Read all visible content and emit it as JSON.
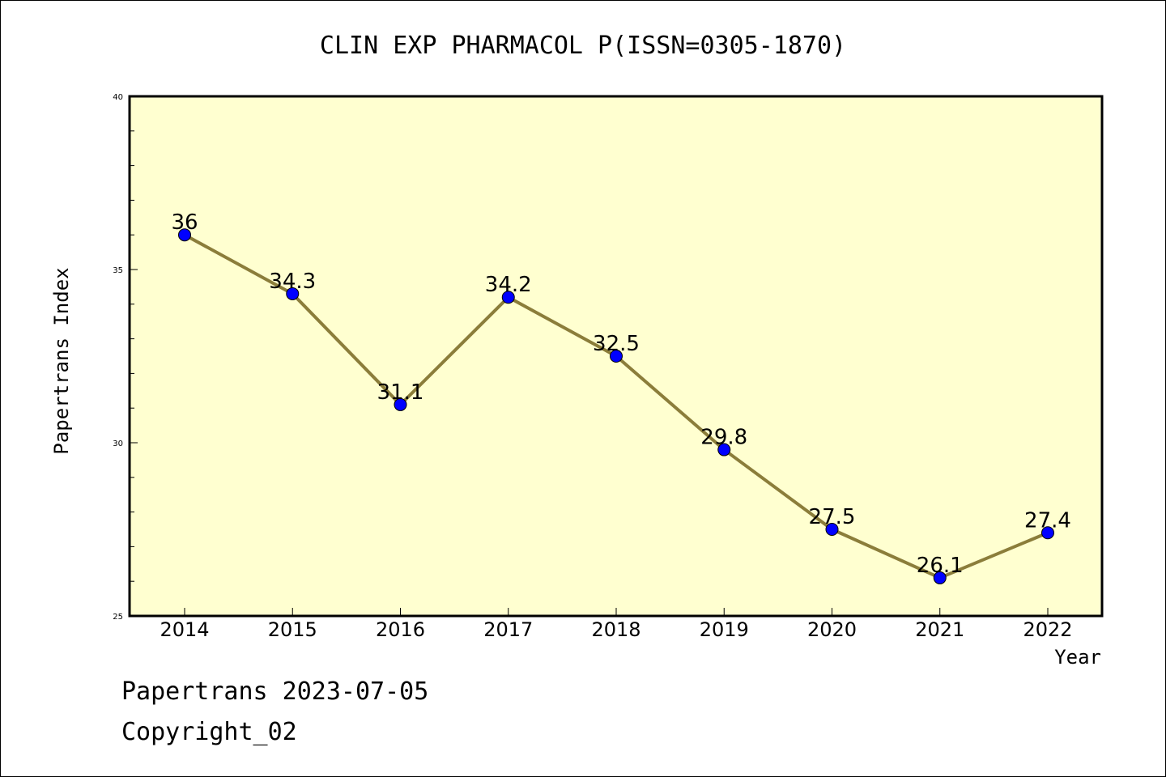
{
  "footer": {
    "line1": "Papertrans 2023-07-05",
    "line2": "Copyright_02"
  },
  "chart_data": {
    "type": "line",
    "title": "CLIN EXP PHARMACOL P(ISSN=0305-1870)",
    "xlabel": "Year",
    "ylabel": "Papertrans Index",
    "categories": [
      "2014",
      "2015",
      "2016",
      "2017",
      "2018",
      "2019",
      "2020",
      "2021",
      "2022"
    ],
    "values": [
      36,
      34.3,
      31.1,
      34.2,
      32.5,
      29.8,
      27.5,
      26.1,
      27.4
    ],
    "data_labels": [
      "36",
      "34.3",
      "31.1",
      "34.2",
      "32.5",
      "29.8",
      "27.5",
      "26.1",
      "27.4"
    ],
    "yticks": [
      "25",
      "30",
      "35",
      "40"
    ],
    "ylim": [
      25,
      40
    ],
    "grid": false,
    "plot_background": "#ffffd0",
    "line_color": "#8b7d3a",
    "marker_color": "#0000ff"
  }
}
